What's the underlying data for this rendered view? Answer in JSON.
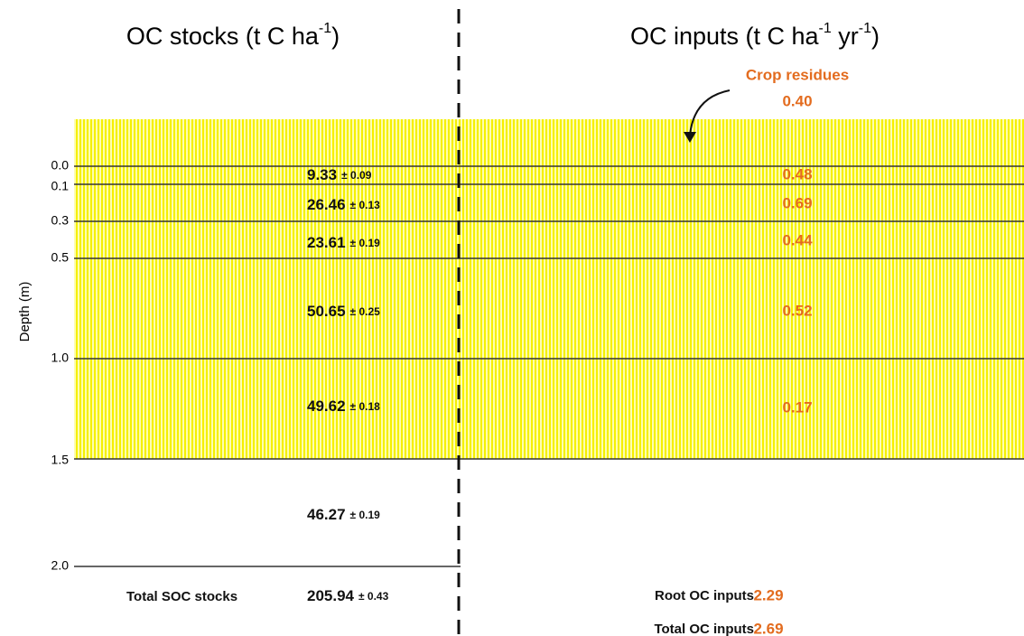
{
  "stocks": {
    "title": [
      "OC stocks (t C ha",
      "-1",
      ")"
    ]
  },
  "inputs": {
    "title": [
      "OC inputs (t C ha",
      "-1",
      " yr",
      "-1",
      ")"
    ]
  },
  "depth_label": "Depth (m)",
  "depth_ticks": [
    "0.0",
    "0.1",
    "0.3",
    "0.5",
    "1.0",
    "1.5",
    "2.0"
  ],
  "crop_residues": {
    "label": "Crop residues",
    "value": "0.40"
  },
  "layers": [
    {
      "stock": "9.33",
      "error": "± 0.09",
      "input": "0.48"
    },
    {
      "stock": "26.46",
      "error": "± 0.13",
      "input": "0.69"
    },
    {
      "stock": "23.61",
      "error": "± 0.19",
      "input": "0.44"
    },
    {
      "stock": "50.65",
      "error": "± 0.25",
      "input": "0.52"
    },
    {
      "stock": "49.62",
      "error": "± 0.18",
      "input": "0.17"
    },
    {
      "stock": "46.27",
      "error": "± 0.19"
    }
  ],
  "totals": {
    "soc_label": "Total SOC stocks",
    "soc_value": "205.94",
    "soc_error": "± 0.43",
    "root_label": "Root OC inputs",
    "root_value": "2.29",
    "total_label": "Total OC inputs",
    "total_value": "2.69"
  }
}
